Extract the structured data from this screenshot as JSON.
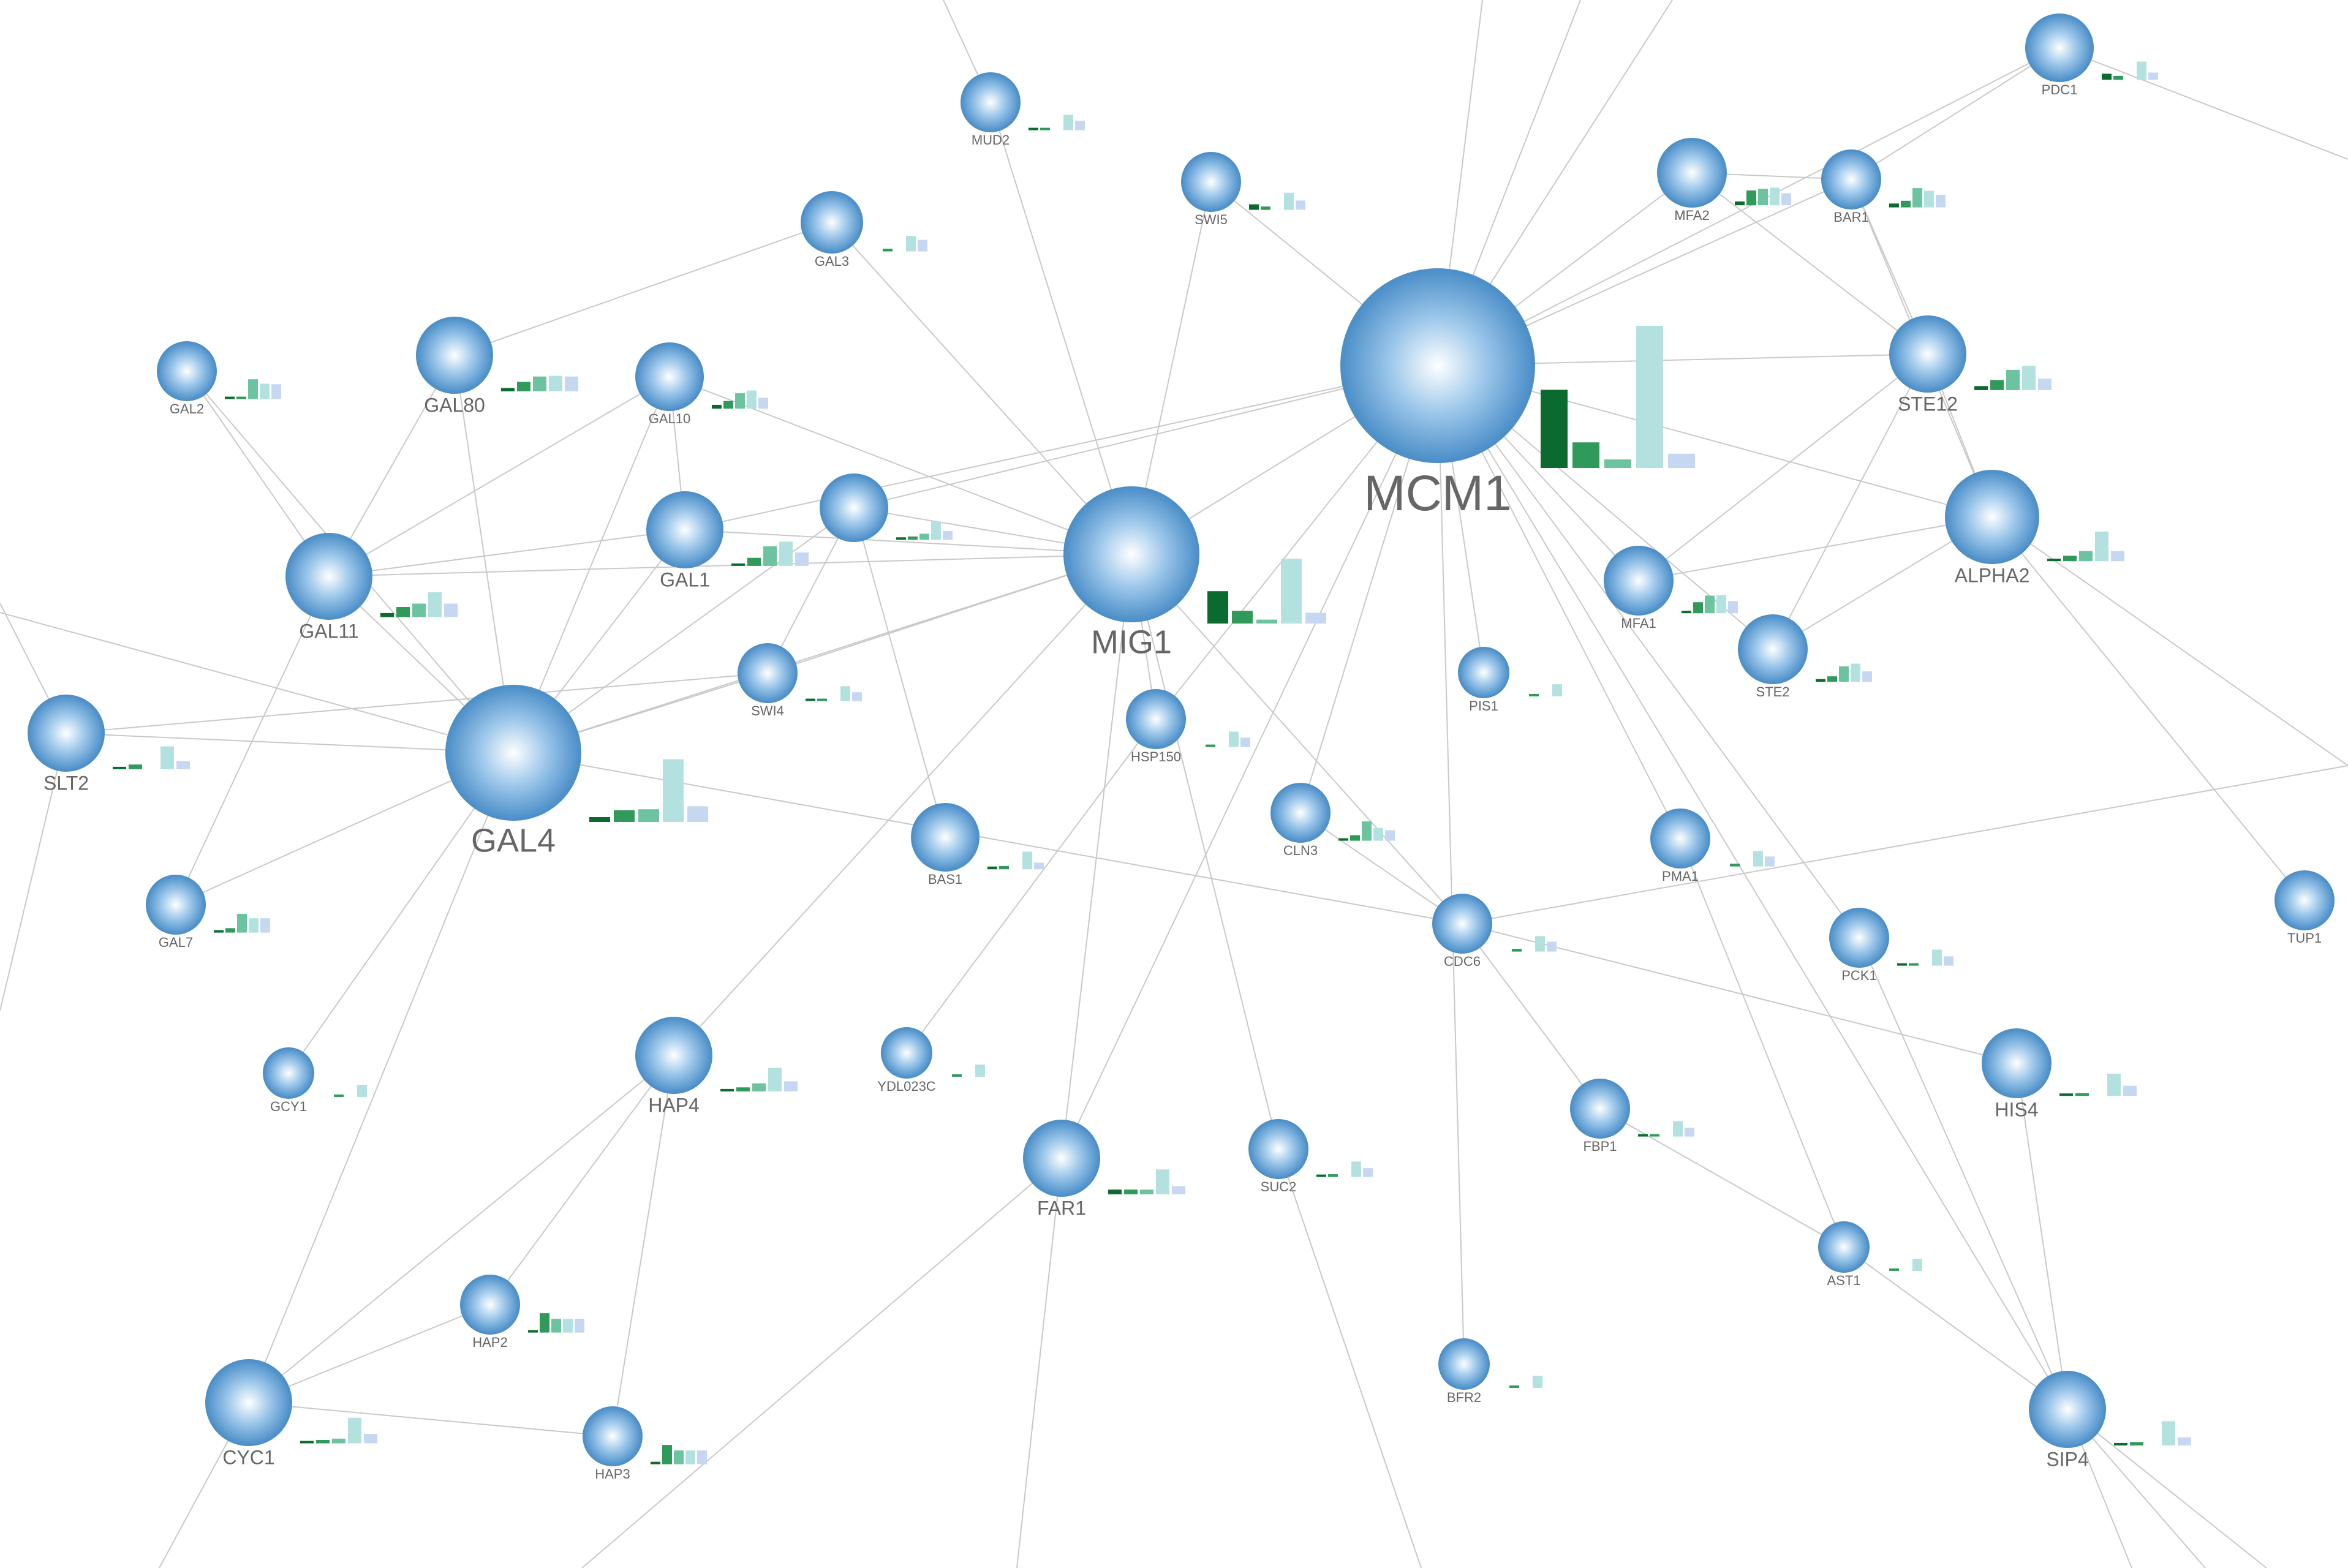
{
  "network": {
    "colors": {
      "edge": "#c9c9c9",
      "node_center": "#ffffff",
      "node_mid": "#8fbde6",
      "node_edge": "#3f86c3",
      "label": "#666666",
      "bars": [
        "#0b6b2f",
        "#2f9a5a",
        "#6cc3a0",
        "#b3e1df",
        "#c6d7f2"
      ]
    },
    "nodes": [
      {
        "id": "MCM1",
        "label": "MCM1",
        "size": "huge",
        "bars": [
          0.55,
          0.18,
          0.06,
          1.0,
          0.1
        ]
      },
      {
        "id": "MIG1",
        "label": "MIG1",
        "size": "large",
        "bars": [
          0.33,
          0.13,
          0.04,
          0.66,
          0.11
        ]
      },
      {
        "id": "GAL4",
        "label": "GAL4",
        "size": "large",
        "bars": [
          0.05,
          0.12,
          0.13,
          0.64,
          0.16
        ]
      },
      {
        "id": "ALPHA2",
        "label": "ALPHA2",
        "size": "medium",
        "bars": [
          0.01,
          0.08,
          0.15,
          0.44,
          0.15
        ]
      },
      {
        "id": "STE12",
        "label": "STE12",
        "size": "medium",
        "bars": [
          0.06,
          0.15,
          0.3,
          0.36,
          0.17
        ]
      },
      {
        "id": "GAL80",
        "label": "GAL80",
        "size": "medium",
        "bars": [
          0.05,
          0.14,
          0.22,
          0.23,
          0.22
        ]
      },
      {
        "id": "GAL11",
        "label": "GAL11",
        "size": "medium",
        "bars": [
          0.06,
          0.15,
          0.2,
          0.37,
          0.2
        ]
      },
      {
        "id": "HAP4",
        "label": "HAP4",
        "size": "medium",
        "bars": [
          0.02,
          0.06,
          0.12,
          0.35,
          0.15
        ]
      },
      {
        "id": "FAR1",
        "label": "FAR1",
        "size": "medium",
        "bars": [
          0.07,
          0.07,
          0.07,
          0.37,
          0.12
        ]
      },
      {
        "id": "CYC1",
        "label": "CYC1",
        "size": "medium",
        "bars": [
          0.02,
          0.05,
          0.07,
          0.38,
          0.14
        ]
      },
      {
        "id": "SIP4",
        "label": "SIP4",
        "size": "medium",
        "bars": [
          0.02,
          0.05,
          0.0,
          0.36,
          0.12
        ]
      },
      {
        "id": "HIS4",
        "label": "HIS4",
        "size": "medium",
        "bars": [
          0.03,
          0.04,
          0.0,
          0.33,
          0.15
        ]
      },
      {
        "id": "SLT2",
        "label": "SLT2",
        "size": "medium",
        "bars": [
          0.01,
          0.07,
          0.0,
          0.34,
          0.12
        ]
      },
      {
        "id": "GAL1",
        "label": "GAL1",
        "size": "medium",
        "bars": [
          0.03,
          0.12,
          0.29,
          0.36,
          0.2
        ]
      },
      {
        "id": "MFA2",
        "label": "MFA2",
        "size": "small",
        "bars": [
          0.07,
          0.27,
          0.3,
          0.32,
          0.22
        ]
      },
      {
        "id": "BAR1",
        "label": "BAR1",
        "size": "small",
        "bars": [
          0.07,
          0.12,
          0.35,
          0.3,
          0.23
        ]
      },
      {
        "id": "PDC1",
        "label": "PDC1",
        "size": "small",
        "bars": [
          0.11,
          0.07,
          0.0,
          0.33,
          0.13
        ]
      },
      {
        "id": "MFA1",
        "label": "MFA1",
        "size": "small",
        "bars": [
          0.04,
          0.2,
          0.32,
          0.33,
          0.22
        ]
      },
      {
        "id": "STE2",
        "label": "STE2",
        "size": "small",
        "bars": [
          0.05,
          0.1,
          0.28,
          0.33,
          0.19
        ]
      },
      {
        "id": "GAL10",
        "label": "GAL10",
        "size": "small",
        "bars": [
          0.07,
          0.14,
          0.28,
          0.33,
          0.2
        ]
      },
      {
        "id": "GAL2",
        "label": "GAL2",
        "size": "small",
        "bars": [
          0.01,
          0.02,
          0.36,
          0.28,
          0.27
        ]
      },
      {
        "id": "GAL3",
        "label": "GAL3",
        "size": "small",
        "bars": [
          0.0,
          0.05,
          0.0,
          0.28,
          0.21
        ]
      },
      {
        "id": "MUD2",
        "label": "MUD2",
        "size": "small",
        "bars": [
          0.01,
          0.04,
          0.0,
          0.28,
          0.17
        ]
      },
      {
        "id": "SWI5",
        "label": "SWI5",
        "size": "small",
        "bars": [
          0.1,
          0.06,
          0.0,
          0.31,
          0.17
        ]
      },
      {
        "id": "UNLABELED",
        "label": "",
        "size": "small",
        "bars": [
          0.02,
          0.06,
          0.11,
          0.33,
          0.16
        ]
      },
      {
        "id": "SWI4",
        "label": "SWI4",
        "size": "small",
        "bars": [
          0.01,
          0.04,
          0.0,
          0.27,
          0.16
        ]
      },
      {
        "id": "HSP150",
        "label": "HSP150",
        "size": "small",
        "bars": [
          0.0,
          0.04,
          0.0,
          0.28,
          0.17
        ]
      },
      {
        "id": "PIS1",
        "label": "PIS1",
        "size": "small",
        "bars": [
          0.0,
          0.04,
          0.0,
          0.22,
          0.0
        ]
      },
      {
        "id": "CLN3",
        "label": "CLN3",
        "size": "small",
        "bars": [
          0.04,
          0.1,
          0.35,
          0.23,
          0.19
        ]
      },
      {
        "id": "BAS1",
        "label": "BAS1",
        "size": "small",
        "bars": [
          0.05,
          0.06,
          0.0,
          0.32,
          0.12
        ]
      },
      {
        "id": "PMA1",
        "label": "PMA1",
        "size": "small",
        "bars": [
          0.0,
          0.05,
          0.0,
          0.28,
          0.18
        ]
      },
      {
        "id": "CDC6",
        "label": "CDC6",
        "size": "small",
        "bars": [
          0.0,
          0.05,
          0.0,
          0.28,
          0.18
        ]
      },
      {
        "id": "PCK1",
        "label": "PCK1",
        "size": "small",
        "bars": [
          0.01,
          0.03,
          0.0,
          0.29,
          0.17
        ]
      },
      {
        "id": "TUP1",
        "label": "TUP1",
        "size": "small",
        "bars": []
      },
      {
        "id": "GAL7",
        "label": "GAL7",
        "size": "small",
        "bars": [
          0.03,
          0.08,
          0.34,
          0.26,
          0.26
        ]
      },
      {
        "id": "GCY1",
        "label": "GCY1",
        "size": "small",
        "bars": [
          0.0,
          0.04,
          0.0,
          0.22,
          0.0
        ]
      },
      {
        "id": "YDL023C",
        "label": "YDL023C",
        "size": "small",
        "bars": [
          0.0,
          0.04,
          0.0,
          0.22,
          0.0
        ]
      },
      {
        "id": "FBP1",
        "label": "FBP1",
        "size": "small",
        "bars": [
          0.01,
          0.04,
          0.0,
          0.28,
          0.16
        ]
      },
      {
        "id": "SUC2",
        "label": "SUC2",
        "size": "small",
        "bars": [
          0.01,
          0.05,
          0.0,
          0.28,
          0.16
        ]
      },
      {
        "id": "AST1",
        "label": "AST1",
        "size": "small",
        "bars": [
          0.0,
          0.04,
          0.0,
          0.22,
          0.0
        ]
      },
      {
        "id": "HAP2",
        "label": "HAP2",
        "size": "small",
        "bars": [
          0.04,
          0.35,
          0.25,
          0.25,
          0.25
        ]
      },
      {
        "id": "HAP3",
        "label": "HAP3",
        "size": "small",
        "bars": [
          0.03,
          0.35,
          0.25,
          0.25,
          0.25
        ]
      },
      {
        "id": "BFR2",
        "label": "BFR2",
        "size": "small",
        "bars": [
          0.0,
          0.04,
          0.0,
          0.22,
          0.0
        ]
      }
    ],
    "edges": [
      [
        "MCM1",
        "MIG1"
      ],
      [
        "MCM1",
        "STE12"
      ],
      [
        "MCM1",
        "ALPHA2"
      ],
      [
        "MCM1",
        "MFA1"
      ],
      [
        "MCM1",
        "STE2"
      ],
      [
        "MCM1",
        "MFA2"
      ],
      [
        "MCM1",
        "BAR1"
      ],
      [
        "MCM1",
        "PDC1"
      ],
      [
        "MCM1",
        "SWI5"
      ],
      [
        "MCM1",
        "PIS1"
      ],
      [
        "MCM1",
        "PMA1"
      ],
      [
        "MCM1",
        "PCK1"
      ],
      [
        "MCM1",
        "SIP4"
      ],
      [
        "MCM1",
        "CLN3"
      ],
      [
        "MCM1",
        "FAR1"
      ],
      [
        "MCM1",
        "HSP150"
      ],
      [
        "MCM1",
        "BFR2"
      ],
      [
        "MCM1",
        "UNLABELED"
      ],
      [
        "MCM1",
        "GAL1"
      ],
      [
        "MIG1",
        "GAL4"
      ],
      [
        "MIG1",
        "GAL1"
      ],
      [
        "MIG1",
        "GAL10"
      ],
      [
        "MIG1",
        "GAL3"
      ],
      [
        "MIG1",
        "MUD2"
      ],
      [
        "MIG1",
        "SWI5"
      ],
      [
        "MIG1",
        "UNLABELED"
      ],
      [
        "MIG1",
        "SWI4"
      ],
      [
        "MIG1",
        "HSP150"
      ],
      [
        "MIG1",
        "CDC6"
      ],
      [
        "MIG1",
        "HAP4"
      ],
      [
        "MIG1",
        "SUC2"
      ],
      [
        "MIG1",
        "FAR1"
      ],
      [
        "MIG1",
        "GAL11"
      ],
      [
        "GAL4",
        "GAL80"
      ],
      [
        "GAL4",
        "GAL11"
      ],
      [
        "GAL4",
        "GAL10"
      ],
      [
        "GAL4",
        "GAL1"
      ],
      [
        "GAL4",
        "GAL2"
      ],
      [
        "GAL4",
        "GAL7"
      ],
      [
        "GAL4",
        "SWI4"
      ],
      [
        "GAL4",
        "CYC1"
      ],
      [
        "GAL4",
        "GCY1"
      ],
      [
        "GAL4",
        "CDC6"
      ],
      [
        "GAL4",
        "UNLABELED"
      ],
      [
        "GAL80",
        "GAL3"
      ],
      [
        "GAL80",
        "GAL11"
      ],
      [
        "GAL11",
        "GAL2"
      ],
      [
        "GAL11",
        "GAL10"
      ],
      [
        "GAL11",
        "GAL7"
      ],
      [
        "GAL11",
        "GAL1"
      ],
      [
        "GAL10",
        "GAL1"
      ],
      [
        "SLT2",
        "SWI4"
      ],
      [
        "SLT2",
        "GAL4"
      ],
      [
        "UNLABELED",
        "BAS1"
      ],
      [
        "UNLABELED",
        "SWI4"
      ],
      [
        "STE12",
        "ALPHA2"
      ],
      [
        "STE12",
        "MFA1"
      ],
      [
        "STE12",
        "STE2"
      ],
      [
        "STE12",
        "BAR1"
      ],
      [
        "STE12",
        "MFA2"
      ],
      [
        "ALPHA2",
        "MFA1"
      ],
      [
        "ALPHA2",
        "STE2"
      ],
      [
        "ALPHA2",
        "BAR1"
      ],
      [
        "ALPHA2",
        "TUP1"
      ],
      [
        "MFA2",
        "BAR1"
      ],
      [
        "BAR1",
        "PDC1"
      ],
      [
        "CDC6",
        "HIS4"
      ],
      [
        "CDC6",
        "FBP1"
      ],
      [
        "CDC6",
        "CLN3"
      ],
      [
        "FBP1",
        "AST1"
      ],
      [
        "PMA1",
        "AST1"
      ],
      [
        "PCK1",
        "SIP4"
      ],
      [
        "AST1",
        "SIP4"
      ],
      [
        "HIS4",
        "SIP4"
      ],
      [
        "HAP4",
        "CYC1"
      ],
      [
        "HAP4",
        "HAP2"
      ],
      [
        "HAP4",
        "HAP3"
      ],
      [
        "CYC1",
        "HAP2"
      ],
      [
        "CYC1",
        "HAP3"
      ],
      [
        "HSP150",
        "YDL023C"
      ]
    ]
  }
}
